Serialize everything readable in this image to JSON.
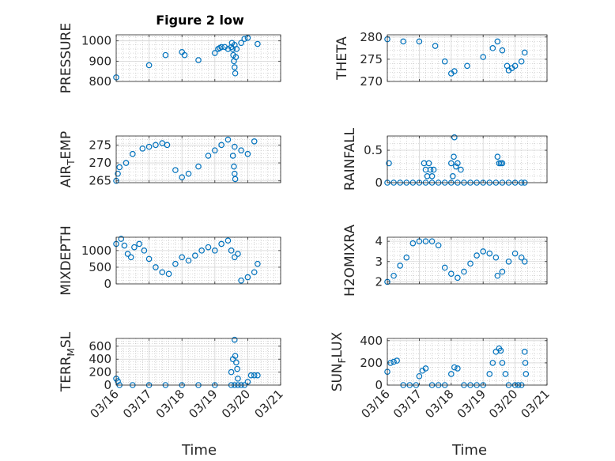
{
  "figure_title": "Figure 2 low",
  "colors": {
    "marker": "#0072BD",
    "axis": "#262626",
    "grid": "#b0b0b0",
    "background": "#ffffff"
  },
  "x_axis": {
    "label": "Time",
    "range": [
      0,
      5
    ],
    "ticks": [
      0,
      1,
      2,
      3,
      4,
      5
    ],
    "tick_labels": [
      "03/16",
      "03/17",
      "03/18",
      "03/19",
      "03/20",
      "03/21"
    ]
  },
  "chart_data": [
    {
      "id": "pressure",
      "type": "scatter",
      "position": "row1-left",
      "ylabel": "PRESSURE",
      "ylim": [
        800,
        1030
      ],
      "yticks": [
        800,
        900,
        1000
      ],
      "series": [
        {
          "x": [
            0,
            1,
            1.5,
            2,
            2.08,
            2.5,
            3,
            3.1,
            3.15,
            3.2,
            3.3,
            3.4,
            3.5,
            3.6,
            3.8,
            3.9,
            4.0,
            4.3
          ],
          "y": [
            820,
            880,
            930,
            945,
            930,
            905,
            940,
            960,
            965,
            970,
            970,
            960,
            970,
            980,
            990,
            1010,
            1015,
            985
          ]
        },
        {
          "x": [
            3.52,
            3.54,
            3.56,
            3.58,
            3.6,
            3.62,
            3.64,
            3.66
          ],
          "y": [
            990,
            960,
            930,
            900,
            870,
            840,
            920,
            960
          ]
        }
      ]
    },
    {
      "id": "theta",
      "type": "scatter",
      "position": "row1-right",
      "ylabel": "THETA",
      "ylim": [
        270,
        280.5
      ],
      "yticks": [
        270,
        275,
        280
      ],
      "series": [
        {
          "x": [
            0,
            0.5,
            1.0,
            1.5,
            1.8,
            2.0,
            2.1,
            2.5,
            3.0,
            3.3,
            3.45,
            3.6,
            3.75,
            3.8,
            3.9,
            4.0,
            4.2,
            4.3
          ],
          "y": [
            279.5,
            279.0,
            279.0,
            278.0,
            274.5,
            271.8,
            272.3,
            273.5,
            275.5,
            277.5,
            279.0,
            277.0,
            273.5,
            272.5,
            273.0,
            273.5,
            274.5,
            276.5
          ]
        }
      ]
    },
    {
      "id": "air_temp",
      "type": "scatter",
      "position": "row2-left",
      "ylabel": "AIR_TEMP",
      "ylabel_main": "AIR",
      "ylabel_sub": "T",
      "ylabel_tail": "EMP",
      "ylim": [
        264.5,
        277.5
      ],
      "yticks": [
        265,
        270,
        275
      ],
      "series": [
        {
          "x": [
            0,
            0.05,
            0.1,
            0.3,
            0.5,
            0.8,
            1.0,
            1.2,
            1.4,
            1.55,
            1.8,
            2.0,
            2.2,
            2.5,
            2.8,
            3.0,
            3.2,
            3.4,
            3.6,
            3.8,
            4.0,
            4.2
          ],
          "y": [
            265.0,
            267.0,
            268.8,
            270.0,
            272.5,
            274.0,
            274.5,
            275.0,
            275.5,
            275.0,
            268.0,
            266.0,
            267.0,
            269.0,
            272.0,
            273.5,
            275.0,
            276.5,
            274.5,
            273.5,
            272.5,
            276.0
          ]
        },
        {
          "x": [
            3.55,
            3.58,
            3.6,
            3.62
          ],
          "y": [
            272.0,
            269.0,
            267.0,
            265.5
          ]
        }
      ]
    },
    {
      "id": "rainfall",
      "type": "scatter",
      "position": "row2-right",
      "ylabel": "RAINFALL",
      "ylim": [
        0,
        0.72
      ],
      "yticks": [
        0,
        0.5
      ],
      "series": [
        {
          "x": [
            0,
            0.2,
            0.4,
            0.6,
            0.8,
            1.0,
            1.2,
            1.4,
            1.6,
            1.8,
            2.0,
            2.2,
            2.4,
            2.6,
            2.8,
            3.0,
            3.2,
            3.4,
            3.6,
            3.8,
            4.0,
            4.2,
            4.3
          ],
          "y": [
            0,
            0,
            0,
            0,
            0,
            0,
            0,
            0,
            0,
            0,
            0,
            0,
            0,
            0,
            0,
            0,
            0,
            0,
            0,
            0,
            0,
            0,
            0
          ]
        },
        {
          "x": [
            0.05,
            1.15,
            1.2,
            1.25,
            1.3,
            1.35,
            1.4,
            1.45,
            2.0,
            2.05,
            2.08,
            2.1,
            2.15,
            2.2,
            2.3,
            3.45,
            3.5,
            3.55,
            3.6
          ],
          "y": [
            0.3,
            0.3,
            0.2,
            0.1,
            0.3,
            0.2,
            0.1,
            0.2,
            0.3,
            0.1,
            0.4,
            0.7,
            0.25,
            0.3,
            0.2,
            0.4,
            0.3,
            0.3,
            0.3
          ]
        }
      ]
    },
    {
      "id": "mixdepth",
      "type": "scatter",
      "position": "row3-left",
      "ylabel": "MIXDEPTH",
      "ylim": [
        0,
        1400
      ],
      "yticks": [
        0,
        500,
        1000
      ],
      "series": [
        {
          "x": [
            0,
            0.15,
            0.25,
            0.35,
            0.45,
            0.55,
            0.7,
            0.85,
            1.0,
            1.2,
            1.4,
            1.6,
            1.8,
            2.0,
            2.2,
            2.4,
            2.6,
            2.8,
            3.0,
            3.2,
            3.4,
            3.5,
            3.6,
            3.7,
            3.8,
            4.0,
            4.2,
            4.3
          ],
          "y": [
            1200,
            1350,
            1150,
            900,
            800,
            1100,
            1200,
            1000,
            750,
            500,
            350,
            300,
            600,
            800,
            700,
            850,
            1000,
            1100,
            1000,
            1200,
            1300,
            1000,
            800,
            900,
            100,
            200,
            350,
            600
          ]
        }
      ]
    },
    {
      "id": "h2omixra",
      "type": "scatter",
      "position": "row3-right",
      "ylabel": "H2OMIXRA",
      "ylim": [
        1.9,
        4.2
      ],
      "yticks": [
        2,
        3,
        4
      ],
      "series": [
        {
          "x": [
            0,
            0.2,
            0.4,
            0.6,
            0.8,
            1.0,
            1.2,
            1.4,
            1.6,
            1.8,
            2.0,
            2.2,
            2.4,
            2.6,
            2.8,
            3.0,
            3.2,
            3.4,
            3.6,
            3.8,
            4.0,
            4.2,
            4.3
          ],
          "y": [
            2.0,
            2.3,
            2.8,
            3.2,
            3.9,
            4.0,
            4.0,
            4.0,
            3.8,
            2.7,
            2.4,
            2.2,
            2.5,
            2.9,
            3.3,
            3.5,
            3.4,
            3.2,
            2.5,
            3.0,
            3.4,
            3.2,
            3.0
          ]
        },
        {
          "x": [
            3.45
          ],
          "y": [
            2.3
          ]
        }
      ]
    },
    {
      "id": "terr_msl",
      "type": "scatter",
      "position": "row4-left",
      "ylabel": "TERR_MSL",
      "ylabel_main": "TERR",
      "ylabel_sub": "M",
      "ylabel_tail": "SL",
      "ylim": [
        0,
        720
      ],
      "yticks": [
        0,
        200,
        400,
        600
      ],
      "series": [
        {
          "x": [
            0,
            0.05,
            0.1,
            0.5,
            1.0,
            1.5,
            2.0,
            2.5,
            3.0,
            3.5,
            3.6,
            3.7,
            3.8,
            3.9,
            4.0,
            4.1,
            4.2,
            4.3
          ],
          "y": [
            100,
            60,
            0,
            0,
            0,
            0,
            0,
            0,
            0,
            0,
            0,
            0,
            0,
            0,
            50,
            150,
            150,
            150
          ]
        },
        {
          "x": [
            3.5,
            3.55,
            3.6,
            3.62,
            3.65,
            3.68,
            3.7
          ],
          "y": [
            200,
            400,
            700,
            450,
            350,
            250,
            100
          ]
        }
      ]
    },
    {
      "id": "sun_flux",
      "type": "scatter",
      "position": "row4-right",
      "ylabel": "SUN_FLUX",
      "ylabel_main": "SUN",
      "ylabel_sub": "F",
      "ylabel_tail": "LUX",
      "ylim": [
        0,
        420
      ],
      "yticks": [
        0,
        200,
        400
      ],
      "series": [
        {
          "x": [
            0,
            0.1,
            0.2,
            0.3,
            0.5,
            0.7,
            0.9,
            1.0,
            1.1,
            1.2,
            1.4,
            1.6,
            1.8,
            2.0,
            2.1,
            2.2,
            2.4,
            2.6,
            2.8,
            3.0,
            3.2,
            3.3,
            3.4,
            3.5,
            3.55,
            3.6,
            3.7,
            3.8,
            4.0,
            4.1,
            4.2
          ],
          "y": [
            120,
            200,
            210,
            220,
            0,
            0,
            0,
            80,
            130,
            150,
            0,
            0,
            0,
            100,
            160,
            150,
            0,
            0,
            0,
            0,
            100,
            200,
            300,
            330,
            310,
            200,
            100,
            0,
            0,
            0,
            0
          ]
        },
        {
          "x": [
            4.3,
            4.32,
            4.34
          ],
          "y": [
            300,
            200,
            100
          ]
        }
      ]
    }
  ]
}
